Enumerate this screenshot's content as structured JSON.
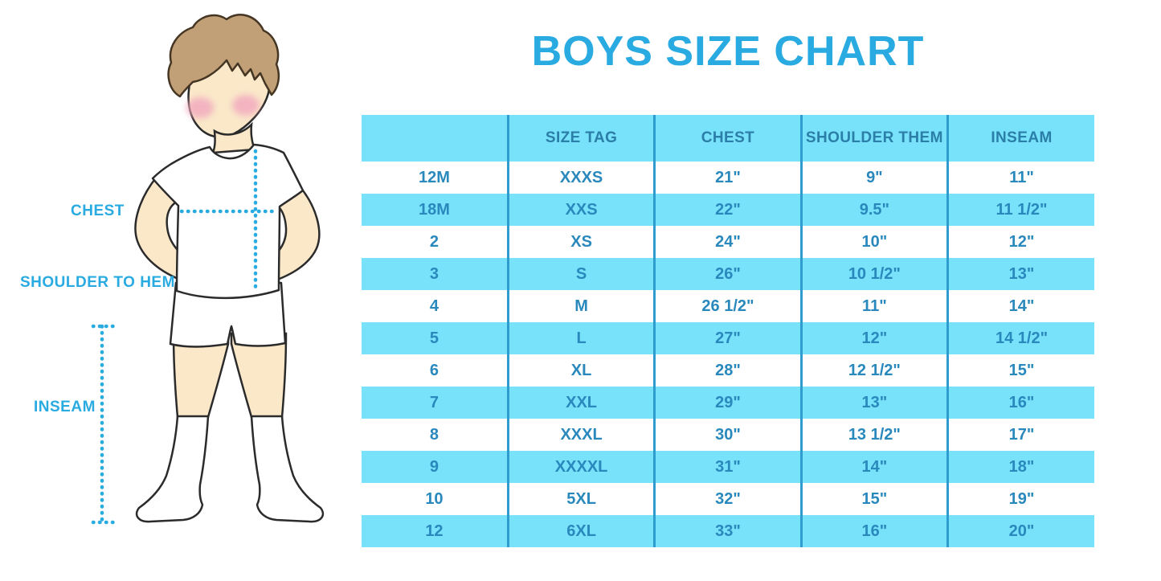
{
  "title": "BOYS SIZE CHART",
  "colors": {
    "accent": "#29ABE2",
    "row_blue": "#77E2FA",
    "divider_blue": "#2F9CD0",
    "header_text": "#2B7EA8",
    "cell_text": "#2988BC",
    "hair_brown": "#C2A077",
    "skin": "#FAE8C9",
    "blush_pink": "#F2A7BE"
  },
  "figure": {
    "labels": {
      "chest": "CHEST",
      "shoulder_to_hem": "SHOULDER TO HEM",
      "inseam": "INSEAM"
    }
  },
  "chart_data": {
    "type": "table",
    "title": "BOYS SIZE CHART",
    "columns": [
      "",
      "SIZE TAG",
      "CHEST",
      "SHOULDER THEM",
      "INSEAM"
    ],
    "rows": [
      [
        "12M",
        "XXXS",
        "21\"",
        "9\"",
        "11\""
      ],
      [
        "18M",
        "XXS",
        "22\"",
        "9.5\"",
        "11 1/2\""
      ],
      [
        "2",
        "XS",
        "24\"",
        "10\"",
        "12\""
      ],
      [
        "3",
        "S",
        "26\"",
        "10 1/2\"",
        "13\""
      ],
      [
        "4",
        "M",
        "26 1/2\"",
        "11\"",
        "14\""
      ],
      [
        "5",
        "L",
        "27\"",
        "12\"",
        "14 1/2\""
      ],
      [
        "6",
        "XL",
        "28\"",
        "12 1/2\"",
        "15\""
      ],
      [
        "7",
        "XXL",
        "29\"",
        "13\"",
        "16\""
      ],
      [
        "8",
        "XXXL",
        "30\"",
        "13 1/2\"",
        "17\""
      ],
      [
        "9",
        "XXXXL",
        "31\"",
        "14\"",
        "18\""
      ],
      [
        "10",
        "5XL",
        "32\"",
        "15\"",
        "19\""
      ],
      [
        "12",
        "6XL",
        "33\"",
        "16\"",
        "20\""
      ]
    ]
  }
}
